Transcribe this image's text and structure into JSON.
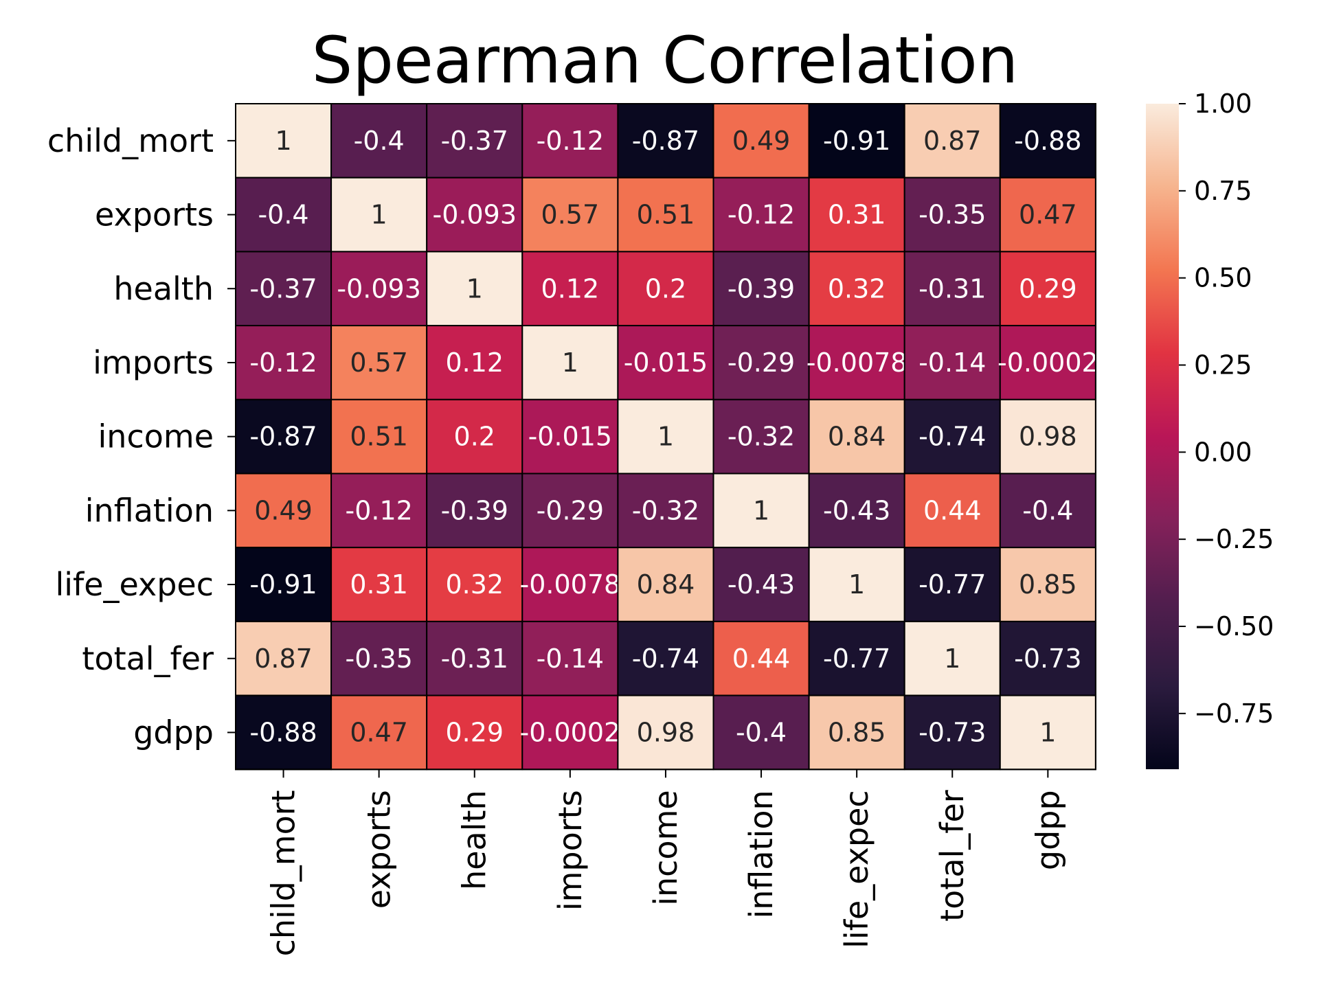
{
  "chart_data": {
    "type": "heatmap",
    "title": "Spearman Correlation",
    "x_labels": [
      "child_mort",
      "exports",
      "health",
      "imports",
      "income",
      "inflation",
      "life_expec",
      "total_fer",
      "gdpp"
    ],
    "y_labels": [
      "child_mort",
      "exports",
      "health",
      "imports",
      "income",
      "inflation",
      "life_expec",
      "total_fer",
      "gdpp"
    ],
    "values": [
      [
        1,
        -0.4,
        -0.37,
        -0.12,
        -0.87,
        0.49,
        -0.91,
        0.87,
        -0.88
      ],
      [
        -0.4,
        1,
        -0.093,
        0.57,
        0.51,
        -0.12,
        0.31,
        -0.35,
        0.47
      ],
      [
        -0.37,
        -0.093,
        1,
        0.12,
        0.2,
        -0.39,
        0.32,
        -0.31,
        0.29
      ],
      [
        -0.12,
        0.57,
        0.12,
        1,
        -0.015,
        -0.29,
        -0.0078,
        -0.14,
        -0.0002
      ],
      [
        -0.87,
        0.51,
        0.2,
        -0.015,
        1,
        -0.32,
        0.84,
        -0.74,
        0.98
      ],
      [
        0.49,
        -0.12,
        -0.39,
        -0.29,
        -0.32,
        1,
        -0.43,
        0.44,
        -0.4
      ],
      [
        -0.91,
        0.31,
        0.32,
        -0.0078,
        0.84,
        -0.43,
        1,
        -0.77,
        0.85
      ],
      [
        0.87,
        -0.35,
        -0.31,
        -0.14,
        -0.74,
        0.44,
        -0.77,
        1,
        -0.73
      ],
      [
        -0.88,
        0.47,
        0.29,
        -0.0002,
        0.98,
        -0.4,
        0.85,
        -0.73,
        1
      ]
    ],
    "annotations": [
      [
        "1",
        "-0.4",
        "-0.37",
        "-0.12",
        "-0.87",
        "0.49",
        "-0.91",
        "0.87",
        "-0.88"
      ],
      [
        "-0.4",
        "1",
        "-0.093",
        "0.57",
        "0.51",
        "-0.12",
        "0.31",
        "-0.35",
        "0.47"
      ],
      [
        "-0.37",
        "-0.093",
        "1",
        "0.12",
        "0.2",
        "-0.39",
        "0.32",
        "-0.31",
        "0.29"
      ],
      [
        "-0.12",
        "0.57",
        "0.12",
        "1",
        "-0.015",
        "-0.29",
        "-0.0078",
        "-0.14",
        "-0.0002"
      ],
      [
        "-0.87",
        "0.51",
        "0.2",
        "-0.015",
        "1",
        "-0.32",
        "0.84",
        "-0.74",
        "0.98"
      ],
      [
        "0.49",
        "-0.12",
        "-0.39",
        "-0.29",
        "-0.32",
        "1",
        "-0.43",
        "0.44",
        "-0.4"
      ],
      [
        "-0.91",
        "0.31",
        "0.32",
        "-0.0078",
        "0.84",
        "-0.43",
        "1",
        "-0.77",
        "0.85"
      ],
      [
        "0.87",
        "-0.35",
        "-0.31",
        "-0.14",
        "-0.74",
        "0.44",
        "-0.77",
        "1",
        "-0.73"
      ],
      [
        "-0.88",
        "0.47",
        "0.29",
        "-0.0002",
        "0.98",
        "-0.4",
        "0.85",
        "-0.73",
        "1"
      ]
    ],
    "colorbar": {
      "colormap": "rocket",
      "range": [
        -0.91,
        1.0
      ],
      "ticks": [
        "1.00",
        "0.75",
        "0.50",
        "0.25",
        "0.00",
        "−0.25",
        "−0.50",
        "−0.75"
      ],
      "tick_values": [
        1.0,
        0.75,
        0.5,
        0.25,
        0.0,
        -0.25,
        -0.5,
        -0.75
      ],
      "position": "right"
    },
    "grid": false,
    "cell_border_color": "#000000"
  }
}
